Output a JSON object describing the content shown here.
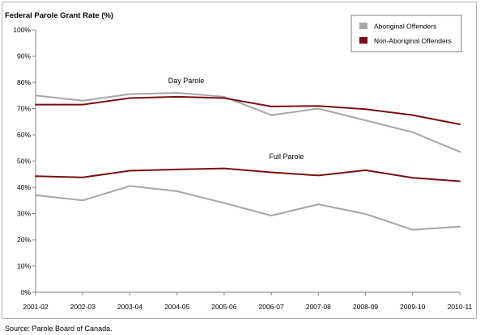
{
  "chart_data": {
    "type": "line",
    "title": "Federal Parole Grant Rate (%)",
    "categories": [
      "2001-02",
      "2002-03",
      "2003-04",
      "2004-05",
      "2005-06",
      "2006-07",
      "2007-08",
      "2008-09",
      "2009-10",
      "2010-11"
    ],
    "ylim": [
      0,
      100
    ],
    "yticks": [
      "0%",
      "10%",
      "20%",
      "30%",
      "40%",
      "50%",
      "60%",
      "70%",
      "80%",
      "90%",
      "100%"
    ],
    "grid": false,
    "legend_position": "top-right",
    "legend": [
      {
        "name": "Aboriginal Offenders",
        "color": "#a6a6a6"
      },
      {
        "name": "Non-Aboriginal Offenders",
        "color": "#7b0f14"
      }
    ],
    "annotations": [
      "Day Parole",
      "Full Parole"
    ],
    "series": [
      {
        "group": "Day Parole",
        "legend_index": 0,
        "color": "#a6a6a6",
        "values": [
          75,
          73,
          75.5,
          76,
          74.5,
          67.5,
          70,
          65.5,
          61,
          53.5
        ]
      },
      {
        "group": "Day Parole",
        "legend_index": 1,
        "color": "#7b0f14",
        "values": [
          71.5,
          71.5,
          74,
          74.5,
          74,
          70.8,
          71,
          69.8,
          67.5,
          64
        ]
      },
      {
        "group": "Full Parole",
        "legend_index": 0,
        "color": "#a6a6a6",
        "values": [
          37,
          35,
          40.5,
          38.5,
          34,
          29.2,
          33.5,
          29.8,
          23.8,
          25
        ]
      },
      {
        "group": "Full Parole",
        "legend_index": 1,
        "color": "#7b0f14",
        "values": [
          44.2,
          43.8,
          46.3,
          46.8,
          47.2,
          45.7,
          44.5,
          46.5,
          43.6,
          42.3
        ]
      }
    ]
  },
  "source": "Source:  Parole Board of Canada."
}
